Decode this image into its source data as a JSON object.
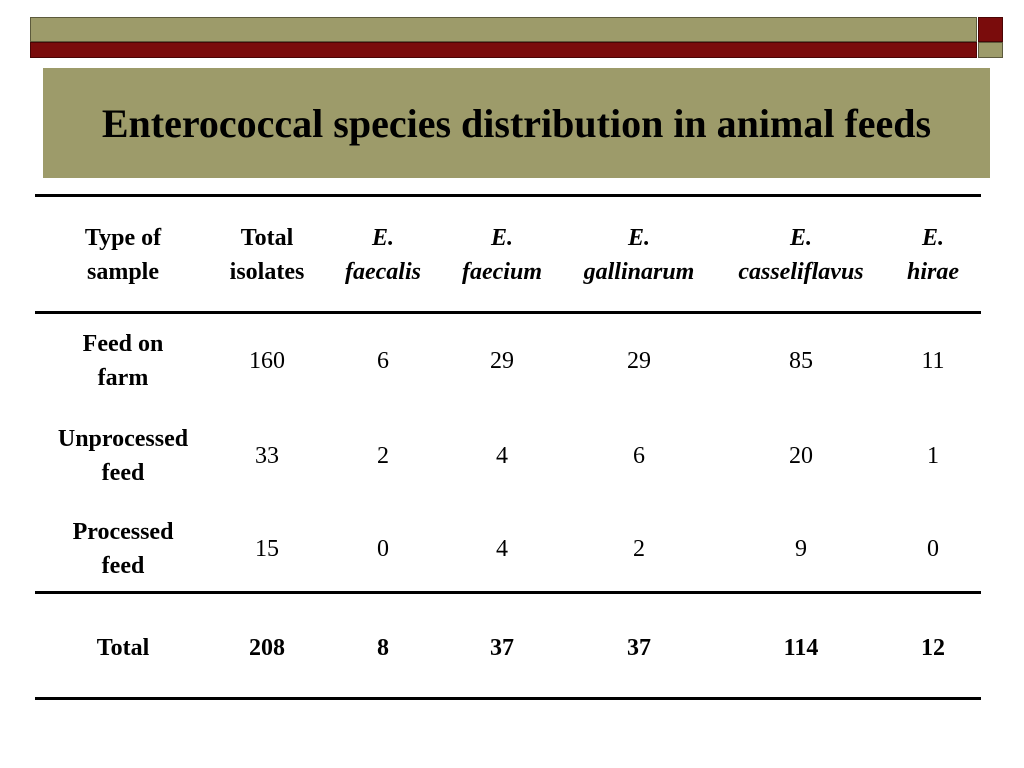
{
  "slide": {
    "title": "Enterococcal species distribution in animal feeds"
  },
  "table": {
    "headers": [
      {
        "line1": "Type of",
        "line2": "sample"
      },
      {
        "line1": "Total",
        "line2": "isolates"
      },
      {
        "line1": "E.",
        "line2": "faecalis"
      },
      {
        "line1": "E.",
        "line2": "faecium"
      },
      {
        "line1": "E.",
        "line2": "gallinarum"
      },
      {
        "line1": "E.",
        "line2": "casseliflavus"
      },
      {
        "line1": "E.",
        "line2": "hirae"
      }
    ],
    "rows": [
      {
        "label1": "Feed on",
        "label2": "farm",
        "total": "160",
        "faecalis": "6",
        "faecium": "29",
        "gallinarum": "29",
        "casseliflavus": "85",
        "hirae": "11"
      },
      {
        "label1": "Unprocessed",
        "label2": "feed",
        "total": "33",
        "faecalis": "2",
        "faecium": "4",
        "gallinarum": "6",
        "casseliflavus": "20",
        "hirae": "1"
      },
      {
        "label1": "Processed",
        "label2": "feed",
        "total": "15",
        "faecalis": "0",
        "faecium": "4",
        "gallinarum": "2",
        "casseliflavus": "9",
        "hirae": "0"
      }
    ],
    "total_row": {
      "label": "Total",
      "total": "208",
      "faecalis": "8",
      "faecium": "37",
      "gallinarum": "37",
      "casseliflavus": "114",
      "hirae": "12"
    }
  }
}
